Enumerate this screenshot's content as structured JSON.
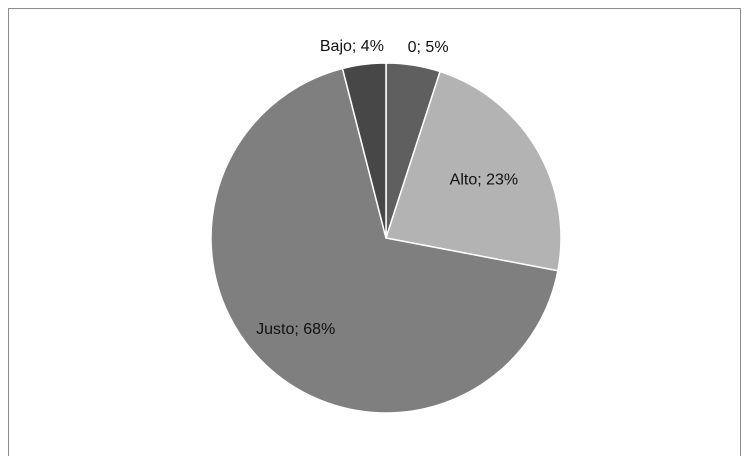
{
  "chart_data": {
    "type": "pie",
    "title": "",
    "slices": [
      {
        "category": "0",
        "value": 5,
        "label": "0; 5%",
        "color": "#5f5f5f"
      },
      {
        "category": "Alto",
        "value": 23,
        "label": "Alto; 23%",
        "color": "#b3b3b3"
      },
      {
        "category": "Justo",
        "value": 68,
        "label": "Justo; 68%",
        "color": "#7f7f7f"
      },
      {
        "category": "Bajo",
        "value": 4,
        "label": "Bajo; 4%",
        "color": "#474747"
      }
    ],
    "start_angle_deg": 0,
    "direction": "clockwise",
    "slice_border_color": "#ffffff",
    "legend": "none"
  }
}
